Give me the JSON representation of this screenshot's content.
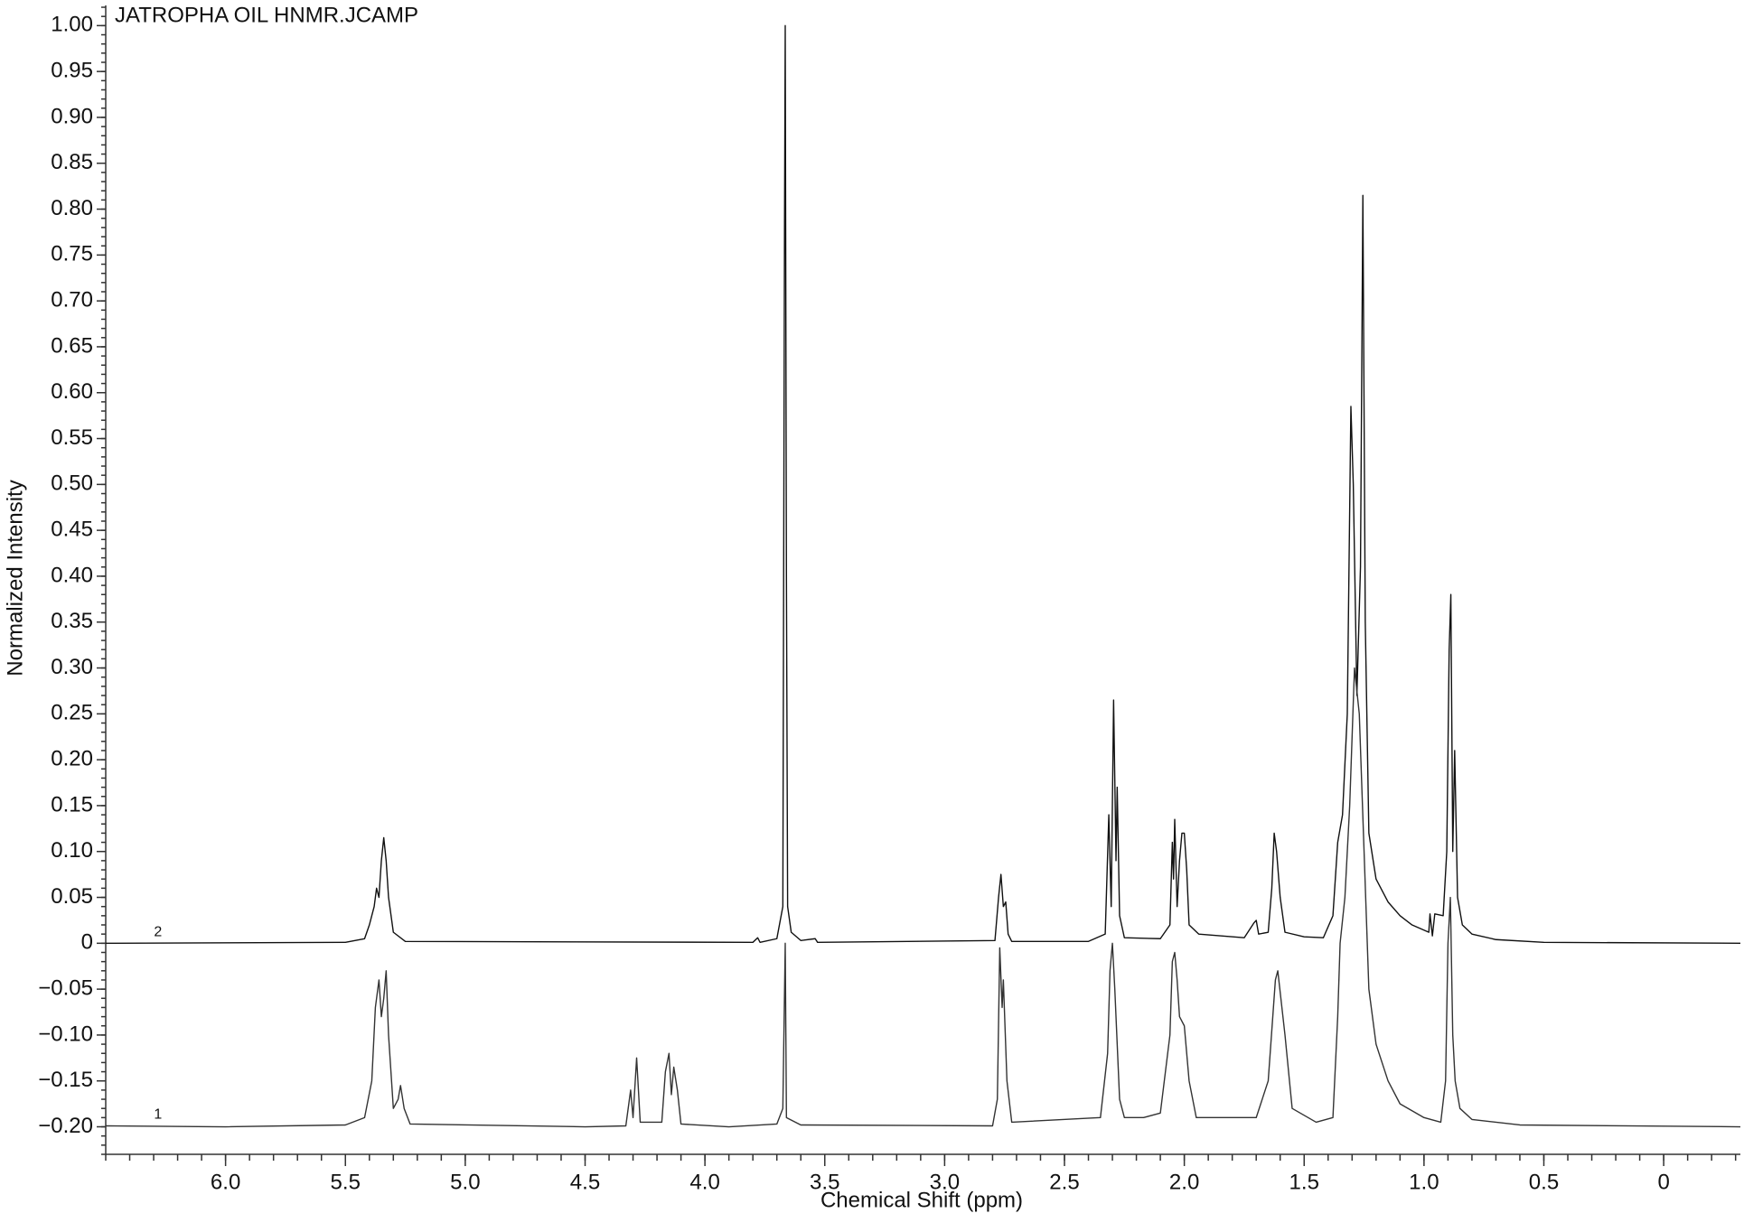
{
  "chart_data": {
    "type": "line",
    "title": "JATROPHA OIL HNMR.JCAMP",
    "x_label": "Chemical Shift (ppm)",
    "y_label": "Normalized Intensity",
    "xlim": [
      6.5,
      -0.32
    ],
    "ylim": [
      -0.23,
      1.022
    ],
    "xticks": [
      {
        "value": 6,
        "label": "6.0"
      },
      5.5,
      {
        "value": 5,
        "label": "5.0"
      },
      4.5,
      {
        "value": 4,
        "label": "4.0"
      },
      3.5,
      {
        "value": 3,
        "label": "3.0"
      },
      2.5,
      {
        "value": 2,
        "label": "2.0"
      },
      1.5,
      {
        "value": 1,
        "label": "1.0"
      },
      0.5,
      0
    ],
    "yticks": [
      {
        "value": -0.2,
        "label": "−0.20"
      },
      {
        "value": -0.15,
        "label": "−0.15"
      },
      {
        "value": -0.1,
        "label": "−0.10"
      },
      {
        "value": -0.05,
        "label": "−0.05"
      },
      0,
      0.05,
      {
        "value": 0.1,
        "label": "0.10"
      },
      0.15,
      {
        "value": 0.2,
        "label": "0.20"
      },
      0.25,
      {
        "value": 0.3,
        "label": "0.30"
      },
      0.35,
      {
        "value": 0.4,
        "label": "0.40"
      },
      0.45,
      {
        "value": 0.5,
        "label": "0.50"
      },
      0.55,
      {
        "value": 0.6,
        "label": "0.60"
      },
      0.65,
      {
        "value": 0.7,
        "label": "0.70"
      },
      0.75,
      {
        "value": 0.8,
        "label": "0.80"
      },
      0.85,
      {
        "value": 0.9,
        "label": "0.90"
      },
      0.95,
      {
        "value": 1,
        "label": "1.00"
      }
    ],
    "series": [
      {
        "name": "2",
        "color": "#111111",
        "x": [
          6.5,
          5.5,
          5.42,
          5.4,
          5.38,
          5.37,
          5.36,
          5.35,
          5.34,
          5.33,
          5.32,
          5.3,
          5.25,
          3.8,
          3.78,
          3.77,
          3.7,
          3.675,
          3.668,
          3.665,
          3.66,
          3.655,
          3.64,
          3.6,
          3.54,
          3.53,
          2.79,
          2.775,
          2.765,
          2.755,
          2.745,
          2.735,
          2.72,
          2.4,
          2.33,
          2.315,
          2.305,
          2.295,
          2.285,
          2.28,
          2.27,
          2.25,
          2.1,
          2.06,
          2.05,
          2.045,
          2.04,
          2.03,
          2.02,
          2.01,
          2.0,
          1.99,
          1.98,
          1.94,
          1.75,
          1.71,
          1.7,
          1.69,
          1.65,
          1.635,
          1.625,
          1.615,
          1.6,
          1.58,
          1.5,
          1.42,
          1.38,
          1.36,
          1.34,
          1.32,
          1.305,
          1.295,
          1.28,
          1.265,
          1.255,
          1.245,
          1.23,
          1.2,
          1.15,
          1.1,
          1.05,
          0.98,
          0.975,
          0.965,
          0.955,
          0.92,
          0.905,
          0.895,
          0.888,
          0.88,
          0.872,
          0.86,
          0.84,
          0.8,
          0.7,
          0.5,
          -0.32
        ],
        "values": [
          0,
          0.001,
          0.005,
          0.02,
          0.04,
          0.06,
          0.05,
          0.09,
          0.115,
          0.09,
          0.05,
          0.012,
          0.002,
          0.001,
          0.006,
          0.001,
          0.005,
          0.04,
          0.78,
          1.0,
          0.4,
          0.04,
          0.012,
          0.003,
          0.005,
          0.001,
          0.003,
          0.05,
          0.075,
          0.04,
          0.045,
          0.01,
          0.002,
          0.002,
          0.01,
          0.14,
          0.04,
          0.265,
          0.09,
          0.17,
          0.03,
          0.006,
          0.005,
          0.02,
          0.11,
          0.07,
          0.135,
          0.04,
          0.09,
          0.12,
          0.12,
          0.08,
          0.02,
          0.01,
          0.006,
          0.022,
          0.025,
          0.01,
          0.012,
          0.06,
          0.12,
          0.1,
          0.05,
          0.012,
          0.007,
          0.006,
          0.03,
          0.11,
          0.14,
          0.25,
          0.585,
          0.5,
          0.27,
          0.41,
          0.815,
          0.35,
          0.12,
          0.07,
          0.045,
          0.03,
          0.02,
          0.012,
          0.032,
          0.008,
          0.032,
          0.03,
          0.1,
          0.32,
          0.38,
          0.1,
          0.21,
          0.05,
          0.02,
          0.01,
          0.004,
          0.001,
          0
        ]
      },
      {
        "name": "1",
        "color": "#333333",
        "x": [
          6.5,
          6.0,
          5.5,
          5.42,
          5.39,
          5.375,
          5.36,
          5.35,
          5.34,
          5.33,
          5.32,
          5.3,
          5.28,
          5.27,
          5.255,
          5.23,
          4.5,
          4.33,
          4.31,
          4.3,
          4.285,
          4.27,
          4.18,
          4.165,
          4.15,
          4.14,
          4.13,
          4.115,
          4.1,
          3.9,
          3.7,
          3.675,
          3.665,
          3.66,
          3.6,
          2.8,
          2.78,
          2.77,
          2.76,
          2.755,
          2.74,
          2.72,
          2.35,
          2.32,
          2.31,
          2.3,
          2.29,
          2.27,
          2.25,
          2.17,
          2.1,
          2.06,
          2.05,
          2.04,
          2.03,
          2.02,
          2.0,
          1.98,
          1.95,
          1.7,
          1.65,
          1.62,
          1.61,
          1.58,
          1.55,
          1.45,
          1.38,
          1.36,
          1.35,
          1.33,
          1.31,
          1.29,
          1.27,
          1.25,
          1.23,
          1.2,
          1.15,
          1.1,
          1.0,
          0.93,
          0.91,
          0.9,
          0.89,
          0.88,
          0.87,
          0.85,
          0.8,
          0.6,
          -0.32
        ],
        "values": [
          -0.199,
          -0.2,
          -0.198,
          -0.19,
          -0.15,
          -0.07,
          -0.04,
          -0.08,
          -0.06,
          -0.03,
          -0.1,
          -0.18,
          -0.17,
          -0.155,
          -0.18,
          -0.197,
          -0.2,
          -0.199,
          -0.16,
          -0.19,
          -0.125,
          -0.195,
          -0.195,
          -0.14,
          -0.12,
          -0.165,
          -0.135,
          -0.16,
          -0.197,
          -0.2,
          -0.197,
          -0.18,
          0.0,
          -0.19,
          -0.198,
          -0.199,
          -0.17,
          -0.005,
          -0.07,
          -0.04,
          -0.15,
          -0.195,
          -0.19,
          -0.12,
          -0.03,
          0.0,
          -0.05,
          -0.17,
          -0.19,
          -0.19,
          -0.185,
          -0.1,
          -0.02,
          -0.01,
          -0.04,
          -0.08,
          -0.09,
          -0.15,
          -0.19,
          -0.19,
          -0.15,
          -0.04,
          -0.03,
          -0.1,
          -0.18,
          -0.195,
          -0.19,
          -0.08,
          0.0,
          0.05,
          0.15,
          0.3,
          0.25,
          0.1,
          -0.05,
          -0.11,
          -0.15,
          -0.175,
          -0.19,
          -0.195,
          -0.15,
          0.0,
          0.05,
          -0.1,
          -0.15,
          -0.18,
          -0.192,
          -0.198,
          -0.2
        ]
      }
    ]
  }
}
